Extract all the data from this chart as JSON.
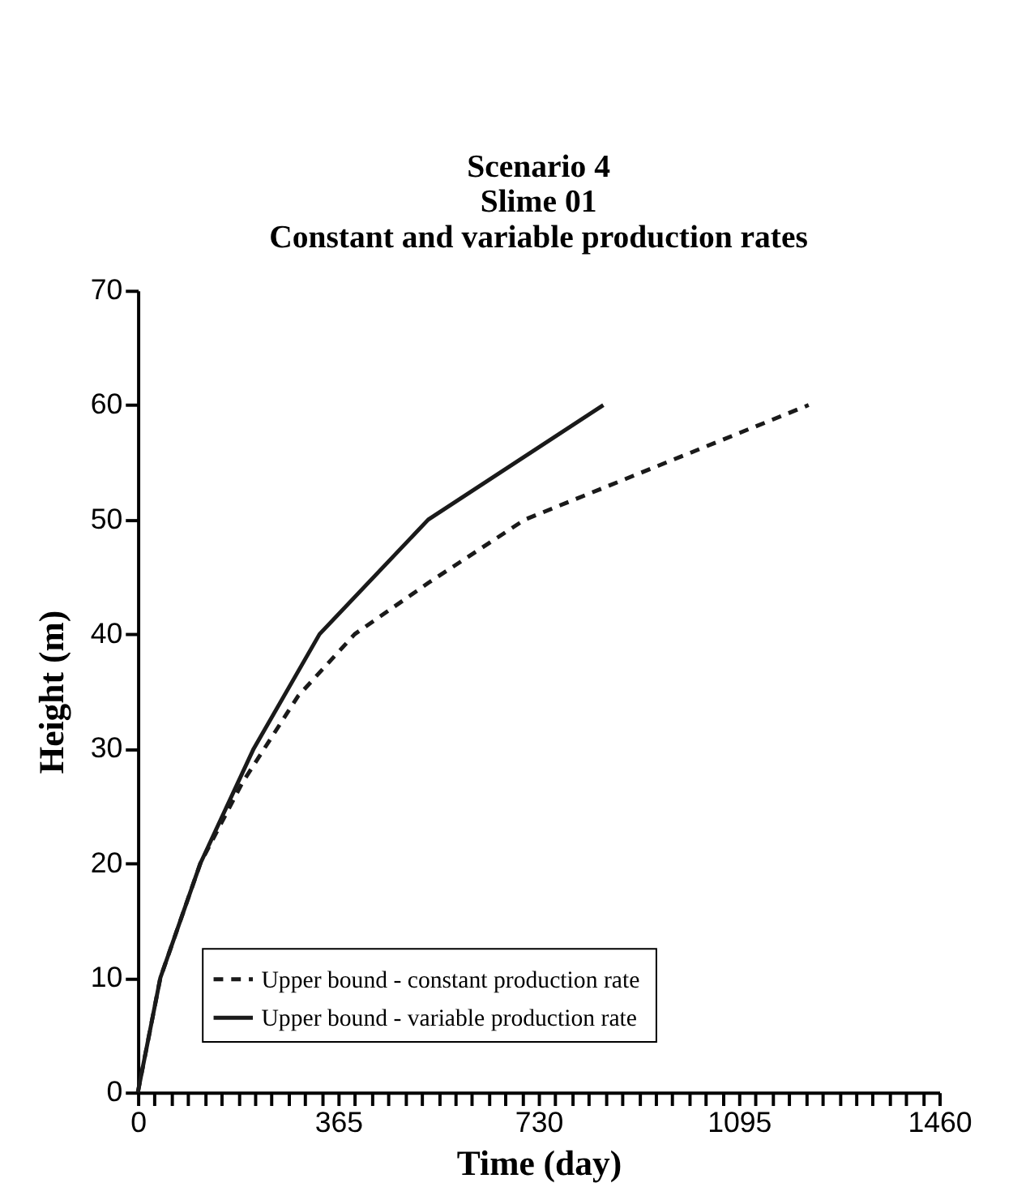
{
  "chart_data": {
    "type": "line",
    "title": [
      "Scenario 4",
      "Slime 01",
      "Constant and variable production rates"
    ],
    "xlabel": "Time (day)",
    "ylabel": "Height (m)",
    "xlim": [
      0,
      1460
    ],
    "ylim": [
      0,
      70
    ],
    "xticks": [
      0,
      {
        "value": 30.42,
        "label": null
      },
      {
        "value": 60.83,
        "label": null
      },
      {
        "value": 91.25,
        "label": null
      },
      {
        "value": 121.67,
        "label": null
      },
      {
        "value": 152.08,
        "label": null
      },
      {
        "value": 182.5,
        "label": null
      },
      {
        "value": 212.92,
        "label": null
      },
      {
        "value": 243.33,
        "label": null
      },
      {
        "value": 273.75,
        "label": null
      },
      {
        "value": 304.17,
        "label": null
      },
      {
        "value": 334.58,
        "label": null
      },
      365,
      {
        "value": 395.42,
        "label": null
      },
      {
        "value": 425.83,
        "label": null
      },
      {
        "value": 456.25,
        "label": null
      },
      {
        "value": 486.67,
        "label": null
      },
      {
        "value": 517.08,
        "label": null
      },
      {
        "value": 547.5,
        "label": null
      },
      {
        "value": 577.92,
        "label": null
      },
      {
        "value": 608.33,
        "label": null
      },
      {
        "value": 638.75,
        "label": null
      },
      {
        "value": 669.17,
        "label": null
      },
      {
        "value": 699.58,
        "label": null
      },
      730,
      {
        "value": 760.42,
        "label": null
      },
      {
        "value": 790.83,
        "label": null
      },
      {
        "value": 821.25,
        "label": null
      },
      {
        "value": 851.67,
        "label": null
      },
      {
        "value": 882.08,
        "label": null
      },
      {
        "value": 912.5,
        "label": null
      },
      {
        "value": 942.92,
        "label": null
      },
      {
        "value": 973.33,
        "label": null
      },
      {
        "value": 1003.75,
        "label": null
      },
      {
        "value": 1034.17,
        "label": null
      },
      {
        "value": 1064.58,
        "label": null
      },
      1095,
      {
        "value": 1125.42,
        "label": null
      },
      {
        "value": 1155.83,
        "label": null
      },
      {
        "value": 1186.25,
        "label": null
      },
      {
        "value": 1216.67,
        "label": null
      },
      {
        "value": 1247.08,
        "label": null
      },
      {
        "value": 1277.5,
        "label": null
      },
      {
        "value": 1307.92,
        "label": null
      },
      {
        "value": 1338.33,
        "label": null
      },
      {
        "value": 1368.75,
        "label": null
      },
      {
        "value": 1399.17,
        "label": null
      },
      {
        "value": 1429.58,
        "label": null
      },
      1460
    ],
    "yticks": [
      0,
      10,
      20,
      30,
      40,
      50,
      60,
      70
    ],
    "grid": false,
    "legend": "bottom",
    "marker": "none",
    "series": [
      {
        "name": "Upper bound  - constant production rate",
        "color": "#1a1a1a",
        "line_style": "dashed",
        "x": [
          0,
          41,
          114,
          190,
          292,
          395,
          530,
          705,
          1222
        ],
        "values": [
          0,
          10,
          20,
          27,
          34.6,
          40,
          44.5,
          50,
          60
        ]
      },
      {
        "name": "Upper bound - variable production rate",
        "color": "#1a1a1a",
        "line_style": "solid",
        "x": [
          0,
          41,
          114,
          211,
          331,
          529,
          848
        ],
        "values": [
          0,
          10,
          20,
          30,
          40,
          50,
          60
        ]
      }
    ]
  }
}
